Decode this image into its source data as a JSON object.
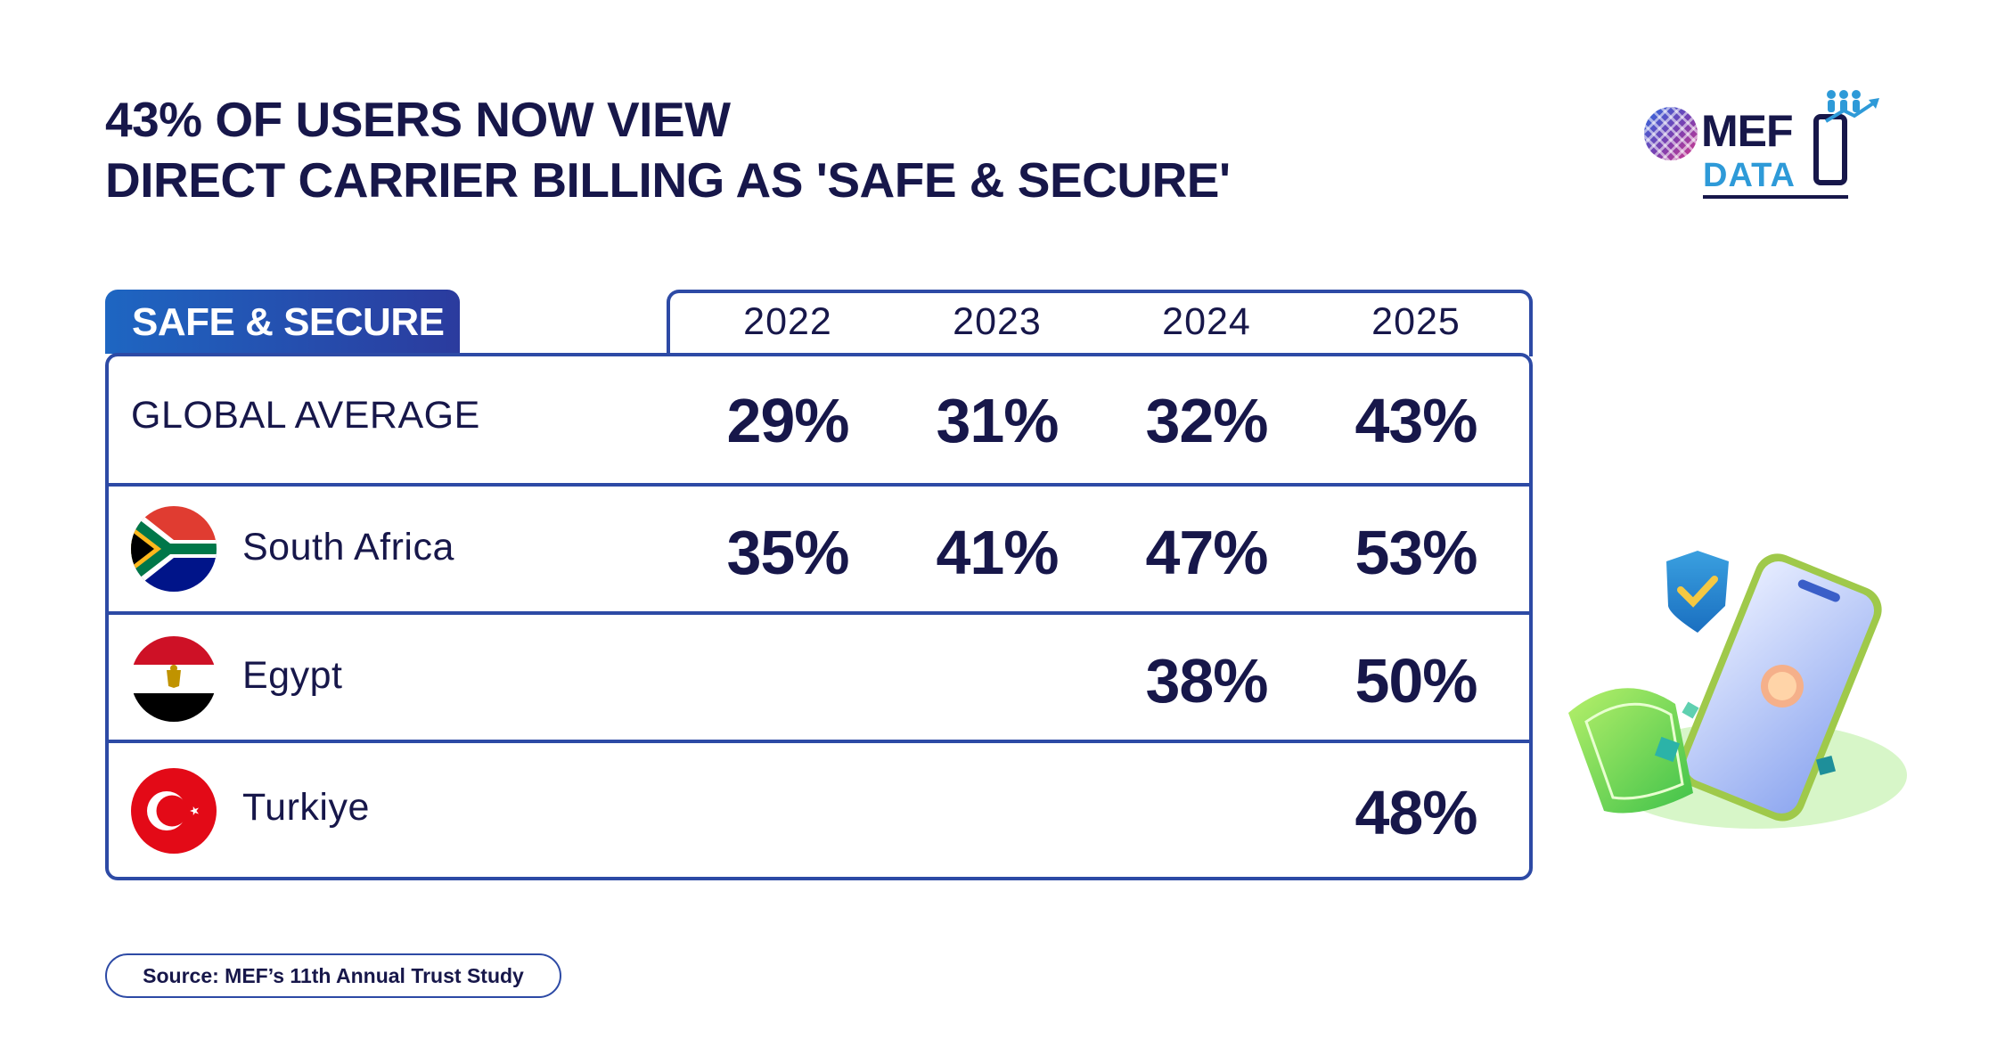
{
  "title": {
    "line1": "43% OF USERS NOW VIEW",
    "line2": "DIRECT CARRIER BILLING AS 'SAFE & SECURE'"
  },
  "logo": {
    "mef": "MEF",
    "data": "DATA"
  },
  "colors": {
    "navy": "#17174a",
    "border": "#2d4aa5",
    "tab_start": "#1e66c2",
    "tab_end": "#2b3b9e",
    "logo_blue": "#2e9ad8"
  },
  "chart_data": {
    "type": "table",
    "tab_label": "SAFE & SECURE",
    "columns": [
      "2022",
      "2023",
      "2024",
      "2025"
    ],
    "rows": [
      {
        "label": "GLOBAL AVERAGE",
        "flag": "",
        "values": [
          "29%",
          "31%",
          "32%",
          "43%"
        ]
      },
      {
        "label": "South Africa",
        "flag": "south-africa-flag-icon",
        "values": [
          "35%",
          "41%",
          "47%",
          "53%"
        ]
      },
      {
        "label": "Egypt",
        "flag": "egypt-flag-icon",
        "values": [
          "",
          "",
          "38%",
          "50%"
        ]
      },
      {
        "label": "Turkiye",
        "flag": "turkiye-flag-icon",
        "values": [
          "",
          "",
          "",
          "48%"
        ]
      }
    ]
  },
  "source": "Source: MEF’s 11th Annual Trust Study",
  "illustration": "secure-phone-payment-illustration"
}
